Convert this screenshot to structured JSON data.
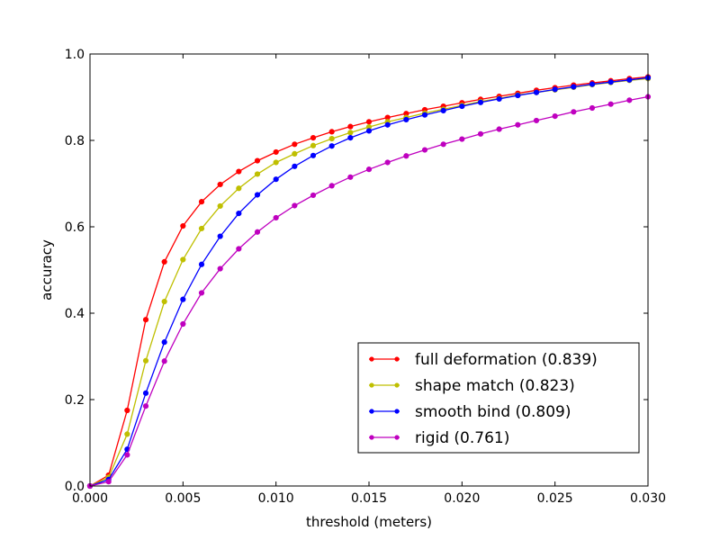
{
  "chart_data": {
    "type": "line",
    "xlabel": "threshold (meters)",
    "ylabel": "accuracy",
    "xlim": [
      0.0,
      0.03
    ],
    "ylim": [
      0.0,
      1.0
    ],
    "xticks": [
      "0.000",
      "0.005",
      "0.010",
      "0.015",
      "0.020",
      "0.025",
      "0.030"
    ],
    "yticks": [
      "0.0",
      "0.2",
      "0.4",
      "0.6",
      "0.8",
      "1.0"
    ],
    "grid": false,
    "legend_position": "lower-right",
    "x": [
      0.0,
      0.001,
      0.002,
      0.003,
      0.004,
      0.005,
      0.006,
      0.007,
      0.008,
      0.009,
      0.01,
      0.011,
      0.012,
      0.013,
      0.014,
      0.015,
      0.016,
      0.017,
      0.018,
      0.019,
      0.02,
      0.021,
      0.022,
      0.023,
      0.024,
      0.025,
      0.026,
      0.027,
      0.028,
      0.029,
      0.03
    ],
    "series": [
      {
        "name": "full deformation (0.839)",
        "color": "#ff0000",
        "values": [
          0.0,
          0.025,
          0.175,
          0.385,
          0.519,
          0.602,
          0.658,
          0.698,
          0.728,
          0.753,
          0.773,
          0.791,
          0.806,
          0.82,
          0.832,
          0.843,
          0.853,
          0.862,
          0.871,
          0.879,
          0.887,
          0.895,
          0.902,
          0.909,
          0.916,
          0.922,
          0.928,
          0.933,
          0.938,
          0.943,
          0.947
        ]
      },
      {
        "name": "shape match (0.823)",
        "color": "#bfbf00",
        "values": [
          0.0,
          0.02,
          0.12,
          0.29,
          0.427,
          0.524,
          0.596,
          0.648,
          0.689,
          0.722,
          0.749,
          0.769,
          0.788,
          0.804,
          0.818,
          0.831,
          0.843,
          0.853,
          0.863,
          0.872,
          0.881,
          0.89,
          0.897,
          0.905,
          0.911,
          0.917,
          0.923,
          0.929,
          0.934,
          0.939,
          0.943
        ]
      },
      {
        "name": "smooth bind (0.809)",
        "color": "#0000ff",
        "values": [
          0.0,
          0.015,
          0.085,
          0.215,
          0.333,
          0.432,
          0.513,
          0.578,
          0.631,
          0.674,
          0.71,
          0.74,
          0.765,
          0.787,
          0.806,
          0.822,
          0.836,
          0.848,
          0.859,
          0.869,
          0.879,
          0.888,
          0.896,
          0.904,
          0.911,
          0.918,
          0.924,
          0.93,
          0.935,
          0.94,
          0.945
        ]
      },
      {
        "name": "rigid (0.761)",
        "color": "#bf00bf",
        "values": [
          0.0,
          0.01,
          0.072,
          0.185,
          0.289,
          0.375,
          0.447,
          0.503,
          0.549,
          0.588,
          0.621,
          0.649,
          0.673,
          0.695,
          0.715,
          0.733,
          0.749,
          0.764,
          0.778,
          0.791,
          0.803,
          0.815,
          0.826,
          0.836,
          0.846,
          0.856,
          0.866,
          0.875,
          0.884,
          0.893,
          0.901
        ]
      }
    ]
  }
}
